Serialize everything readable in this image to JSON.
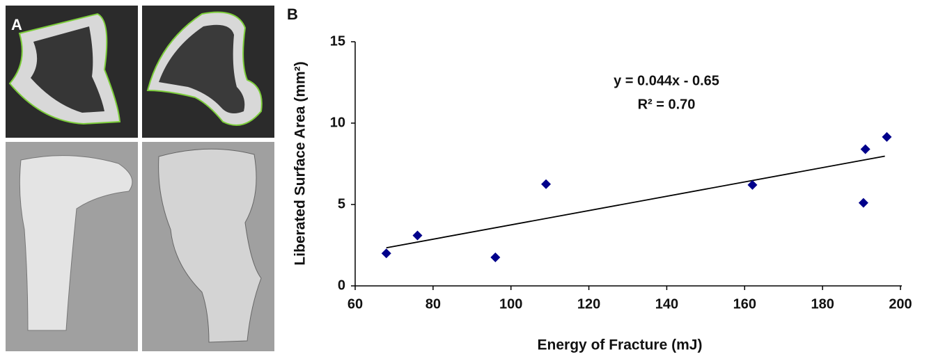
{
  "panel_labels": [
    "A",
    "B"
  ],
  "chart_data": {
    "type": "scatter",
    "x_label": "Energy of Fracture (mJ)",
    "y_label": "Liberated Surface Area (mm²)",
    "annotations": [
      "y = 0.044x - 0.65",
      "R² = 0.70"
    ],
    "series": [
      {
        "color": "#00008b",
        "x": [
          68,
          76,
          96,
          109,
          162,
          190.5,
          191,
          196.5
        ],
        "values": [
          2.0,
          3.1,
          1.75,
          6.25,
          6.2,
          5.1,
          8.4,
          9.15
        ]
      }
    ],
    "trendline": {
      "color": "#000000",
      "x": [
        68,
        196
      ],
      "values": [
        2.34,
        7.97
      ]
    },
    "xlim": [
      60,
      200
    ],
    "xticks": [
      60,
      80,
      100,
      120,
      140,
      160,
      180,
      200
    ],
    "ylim": [
      0,
      15
    ],
    "yticks": [
      0,
      5,
      10,
      15
    ],
    "grid": false
  }
}
